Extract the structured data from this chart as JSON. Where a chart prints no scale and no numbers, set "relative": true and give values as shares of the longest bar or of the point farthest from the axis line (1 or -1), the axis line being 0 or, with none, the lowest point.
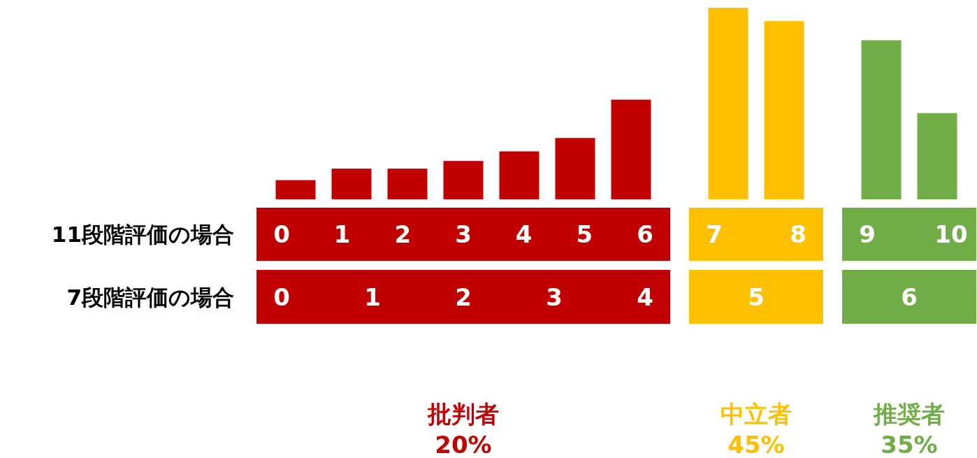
{
  "chart_data": {
    "type": "bar",
    "relative": true,
    "categories": [
      "0",
      "1",
      "2",
      "3",
      "4",
      "5",
      "6",
      "7",
      "8",
      "9",
      "10"
    ],
    "values": [
      0.1,
      0.16,
      0.16,
      0.2,
      0.25,
      0.32,
      0.52,
      1,
      0.93,
      0.83,
      0.45
    ],
    "colors": [
      "#c00000",
      "#c00000",
      "#c00000",
      "#c00000",
      "#c00000",
      "#c00000",
      "#c00000",
      "#ffc000",
      "#ffc000",
      "#70ad47",
      "#70ad47"
    ],
    "annotations": [
      "11段階評価の場合",
      "7段階評価の場合",
      "0",
      "1",
      "2",
      "3",
      "4",
      "5",
      "6",
      "批判者",
      "20%",
      "中立者",
      "45%",
      "推奨者",
      "35%"
    ]
  }
}
